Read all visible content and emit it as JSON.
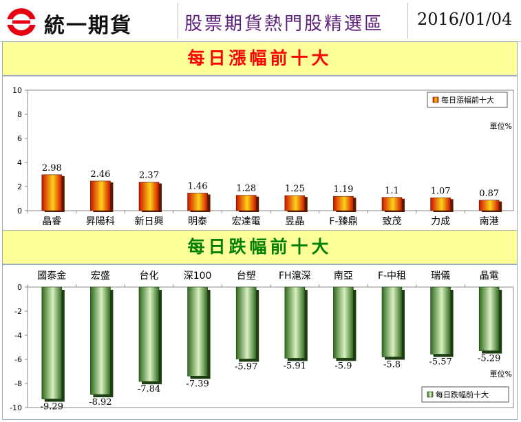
{
  "header": {
    "company": "統一期貨",
    "title": "股票期貨熱門股精選區",
    "date": "2016/01/04"
  },
  "chart_data": [
    {
      "type": "bar",
      "title": "每日漲幅前十大",
      "categories": [
        "晶睿",
        "昇陽科",
        "新日興",
        "明泰",
        "宏達電",
        "昱晶",
        "F-臻鼎",
        "致茂",
        "力成",
        "南港"
      ],
      "series": [
        {
          "name": "每日漲幅前十大",
          "values": [
            2.98,
            2.46,
            2.37,
            1.46,
            1.28,
            1.25,
            1.19,
            1.1,
            1.07,
            0.87
          ]
        }
      ],
      "value_labels": [
        "2.98",
        "2.46",
        "2.37",
        "1.46",
        "1.28",
        "1.25",
        "1.19",
        "1.1",
        "1.07",
        "0.87"
      ],
      "ylim": [
        0,
        10
      ],
      "yticks": [
        "0",
        "2",
        "4",
        "6",
        "8",
        "10"
      ],
      "unit_label": "單位%",
      "legend_position": "top-right",
      "colors": {
        "bar_dark": "#cc1100",
        "bar_light": "#ffd21a",
        "shadow": "#5a1a00"
      }
    },
    {
      "type": "bar",
      "title": "每日跌幅前十大",
      "categories": [
        "國泰金",
        "宏盛",
        "台化",
        "深100",
        "台塑",
        "FH滬深",
        "南亞",
        "F-中租",
        "瑞儀",
        "晶電"
      ],
      "series": [
        {
          "name": "每日跌幅前十大",
          "values": [
            -9.29,
            -8.92,
            -7.84,
            -7.39,
            -5.97,
            -5.91,
            -5.9,
            -5.8,
            -5.57,
            -5.29
          ]
        }
      ],
      "value_labels": [
        "-9.29",
        "-8.92",
        "-7.84",
        "-7.39",
        "-5.97",
        "-5.91",
        "-5.9",
        "-5.8",
        "-5.57",
        "-5.29"
      ],
      "ylim": [
        -10,
        0
      ],
      "yticks": [
        "0",
        "-2",
        "-4",
        "-6",
        "-8",
        "-10"
      ],
      "unit_label": "單位%",
      "legend_position": "bottom-right",
      "colors": {
        "bar_dark": "#2f6a1f",
        "bar_light": "#d9f0c0",
        "shadow": "#1e3d12"
      }
    }
  ]
}
